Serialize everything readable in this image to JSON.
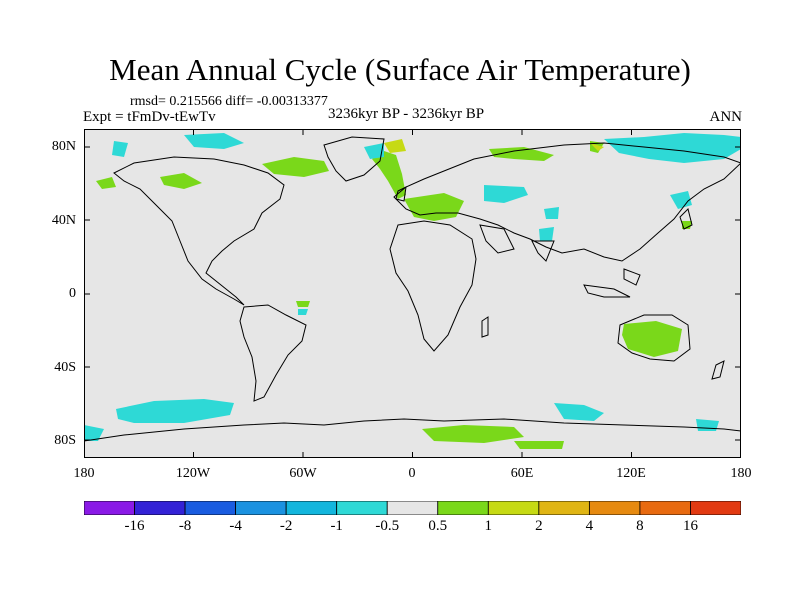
{
  "title": "Mean Annual Cycle (Surface Air Temperature)",
  "stats": "rmsd= 0.215566 diff= -0.00313377",
  "experiment": "Expt = tFmDv-tEwTv",
  "period": "3236kyr BP - 3236kyr BP",
  "season": "ANN",
  "lat_ticks": [
    "80N",
    "40N",
    "0",
    "40S",
    "80S"
  ],
  "lon_ticks": [
    "180",
    "120W",
    "60W",
    "0",
    "60E",
    "120E",
    "180"
  ],
  "colorbar": {
    "labels": [
      "-16",
      "-8",
      "-4",
      "-2",
      "-1",
      "-0.5",
      "0.5",
      "1",
      "2",
      "4",
      "8",
      "16"
    ],
    "colors": [
      "#8a1ae6",
      "#3322d6",
      "#1a5ce0",
      "#1b92e0",
      "#13b6dd",
      "#2ed9d6",
      "#e6e6e6",
      "#7ad81a",
      "#c6da14",
      "#e0b514",
      "#e68a10",
      "#e86a10",
      "#e23a12"
    ]
  },
  "colors": {
    "land_sea_background": "#e6e6e6",
    "cool_anomaly": "#2ed9d6",
    "warm_anomaly": "#7ad81a"
  }
}
